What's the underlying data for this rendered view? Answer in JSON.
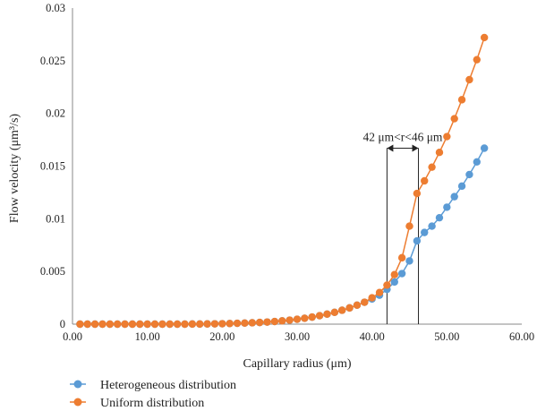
{
  "chart_data": {
    "type": "line",
    "xlabel": "Capillary radius (μm)",
    "ylabel": "Flow velocity (μm³/s)",
    "xlim": [
      0,
      60
    ],
    "ylim": [
      0,
      0.03
    ],
    "x_ticks": [
      "0.00",
      "10.00",
      "20.00",
      "30.00",
      "40.00",
      "50.00",
      "60.00"
    ],
    "y_ticks": [
      "0",
      "0.005",
      "0.01",
      "0.015",
      "0.02",
      "0.025",
      "0.03"
    ],
    "grid": false,
    "legend_position": "bottom-left",
    "annotation": {
      "text": "42 μm<r<46 μm",
      "x_start": 42,
      "x_end": 46.2,
      "y_top": 0.0167
    },
    "x": [
      1,
      2,
      3,
      4,
      5,
      6,
      7,
      8,
      9,
      10,
      11,
      12,
      13,
      14,
      15,
      16,
      17,
      18,
      19,
      20,
      21,
      22,
      23,
      24,
      25,
      26,
      27,
      28,
      29,
      30,
      31,
      32,
      33,
      34,
      35,
      36,
      37,
      38,
      39,
      40,
      41,
      42,
      43,
      44,
      45,
      46,
      47,
      48,
      49,
      50,
      51,
      52,
      53,
      54,
      55
    ],
    "series": [
      {
        "name": "Heterogeneous distribution",
        "color": "#5B9BD5",
        "values": [
          0,
          0,
          0,
          0,
          0,
          0,
          0,
          0,
          0,
          0,
          0,
          0,
          0,
          0,
          0,
          1e-05,
          1e-05,
          2e-05,
          3e-05,
          4e-05,
          6e-05,
          8e-05,
          0.0001,
          0.00013,
          0.00016,
          0.0002,
          0.00025,
          0.00031,
          0.00038,
          0.00046,
          0.00056,
          0.00067,
          0.0008,
          0.00095,
          0.00112,
          0.00132,
          0.00154,
          0.0018,
          0.00208,
          0.00239,
          0.00275,
          0.0033,
          0.004,
          0.0048,
          0.006,
          0.0079,
          0.0087,
          0.0093,
          0.0101,
          0.0111,
          0.0121,
          0.0131,
          0.0142,
          0.0154,
          0.0167
        ]
      },
      {
        "name": "Uniform distribution",
        "color": "#ED7D31",
        "values": [
          0,
          0,
          0,
          0,
          0,
          0,
          0,
          0,
          0,
          0,
          0,
          0,
          0,
          0,
          0,
          1e-05,
          1e-05,
          2e-05,
          3e-05,
          4e-05,
          6e-05,
          8e-05,
          0.0001,
          0.00013,
          0.00016,
          0.0002,
          0.00025,
          0.00031,
          0.00038,
          0.00046,
          0.00056,
          0.00067,
          0.0008,
          0.00095,
          0.00112,
          0.00132,
          0.00154,
          0.0018,
          0.00208,
          0.0025,
          0.003,
          0.0037,
          0.0047,
          0.0063,
          0.0093,
          0.0124,
          0.0136,
          0.0149,
          0.0163,
          0.0178,
          0.0195,
          0.0213,
          0.0232,
          0.0251,
          0.0272
        ]
      }
    ]
  }
}
